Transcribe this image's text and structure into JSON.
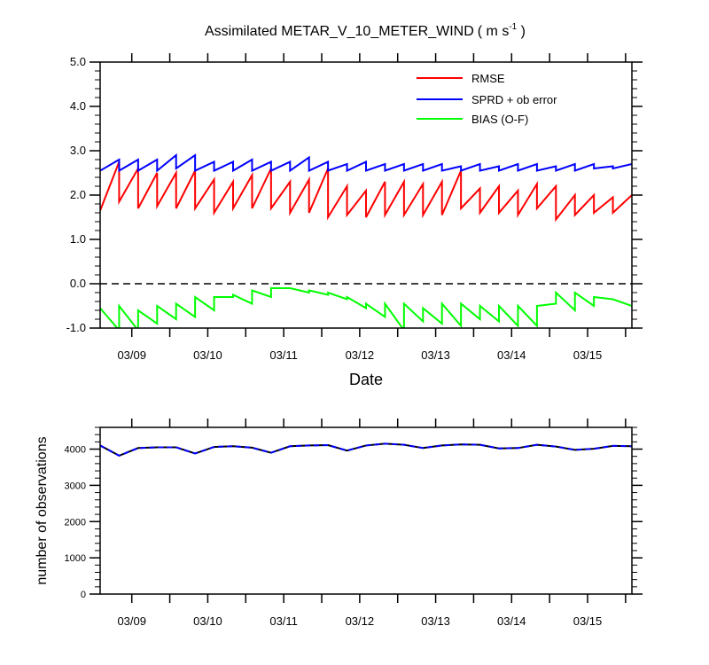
{
  "chart_data": [
    {
      "type": "line",
      "title": "Assimilated METAR_V_10_METER_WIND",
      "title_units": "( m s",
      "title_units_exponent": "-1",
      "title_units_close": " )",
      "xlabel": "Date",
      "ylabel": "",
      "x_tick_labels": [
        "03/09",
        "03/10",
        "03/11",
        "03/12",
        "03/13",
        "03/14",
        "03/15"
      ],
      "y_tick_labels": [
        "5.0",
        "4.0",
        "3.0",
        "2.0",
        "1.0",
        "0.0",
        "-1.0"
      ],
      "ylim": [
        -1.0,
        5.0
      ],
      "xlim": [
        "03/08 14:00",
        "03/15 14:00"
      ],
      "x_unit": "days from 03/08 00:00",
      "grid": false,
      "legend_placement": "top-right",
      "reference_line": {
        "y": 0.0,
        "style": "dashed"
      },
      "series": [
        {
          "name": "RMSE",
          "color": "#ff0000",
          "x": [
            0.5833,
            0.8333,
            0.8333,
            1.0833,
            1.0833,
            1.3333,
            1.3333,
            1.5833,
            1.5833,
            1.8333,
            1.8333,
            2.0833,
            2.0833,
            2.3333,
            2.3333,
            2.5833,
            2.5833,
            2.8333,
            2.8333,
            3.0833,
            3.0833,
            3.3333,
            3.3333,
            3.5833,
            3.5833,
            3.8333,
            3.8333,
            4.0833,
            4.0833,
            4.3333,
            4.3333,
            4.5833,
            4.5833,
            4.8333,
            4.8333,
            5.0833,
            5.0833,
            5.3333,
            5.3333,
            5.5833,
            5.5833,
            5.8333,
            5.8333,
            6.0833,
            6.0833,
            6.3333,
            6.3333,
            6.5833,
            6.5833,
            6.8333,
            6.8333,
            7.0833,
            7.0833,
            7.3333,
            7.3333,
            7.5833
          ],
          "values": [
            1.65,
            2.75,
            1.85,
            2.6,
            1.7,
            2.5,
            1.75,
            2.5,
            1.7,
            2.55,
            1.7,
            2.35,
            1.6,
            2.3,
            1.7,
            2.45,
            1.7,
            2.6,
            1.7,
            2.3,
            1.6,
            2.35,
            1.6,
            2.6,
            1.5,
            2.2,
            1.55,
            2.1,
            1.5,
            2.3,
            1.55,
            2.3,
            1.55,
            2.25,
            1.55,
            2.3,
            1.55,
            2.55,
            1.7,
            2.15,
            1.6,
            2.2,
            1.6,
            2.1,
            1.55,
            2.25,
            1.7,
            2.2,
            1.45,
            2.0,
            1.55,
            2.0,
            1.6,
            1.95,
            1.6,
            2.0
          ]
        },
        {
          "name": "SPRD + ob error",
          "color": "#0000ff",
          "x": [
            0.5833,
            0.8333,
            0.8333,
            1.0833,
            1.0833,
            1.3333,
            1.3333,
            1.5833,
            1.5833,
            1.8333,
            1.8333,
            2.0833,
            2.0833,
            2.3333,
            2.3333,
            2.5833,
            2.5833,
            2.8333,
            2.8333,
            3.0833,
            3.0833,
            3.3333,
            3.3333,
            3.5833,
            3.5833,
            3.8333,
            3.8333,
            4.0833,
            4.0833,
            4.3333,
            4.3333,
            4.5833,
            4.5833,
            4.8333,
            4.8333,
            5.0833,
            5.0833,
            5.3333,
            5.3333,
            5.5833,
            5.5833,
            5.8333,
            5.8333,
            6.0833,
            6.0833,
            6.3333,
            6.3333,
            6.5833,
            6.5833,
            6.8333,
            6.8333,
            7.0833,
            7.0833,
            7.3333,
            7.3333,
            7.5833
          ],
          "values": [
            2.55,
            2.8,
            2.55,
            2.8,
            2.55,
            2.8,
            2.55,
            2.9,
            2.6,
            2.9,
            2.55,
            2.75,
            2.55,
            2.75,
            2.55,
            2.8,
            2.55,
            2.75,
            2.55,
            2.75,
            2.55,
            2.85,
            2.55,
            2.75,
            2.55,
            2.7,
            2.55,
            2.75,
            2.55,
            2.7,
            2.55,
            2.7,
            2.55,
            2.7,
            2.55,
            2.7,
            2.55,
            2.65,
            2.55,
            2.7,
            2.55,
            2.65,
            2.55,
            2.7,
            2.55,
            2.7,
            2.55,
            2.65,
            2.55,
            2.7,
            2.55,
            2.7,
            2.6,
            2.65,
            2.6,
            2.7
          ]
        },
        {
          "name": "BIAS (O-F)",
          "color": "#00ff00",
          "x": [
            0.5833,
            0.8333,
            0.8333,
            1.0833,
            1.0833,
            1.3333,
            1.3333,
            1.5833,
            1.5833,
            1.8333,
            1.8333,
            2.0833,
            2.0833,
            2.3333,
            2.3333,
            2.5833,
            2.5833,
            2.8333,
            2.8333,
            3.0833,
            3.0833,
            3.3333,
            3.3333,
            3.5833,
            3.5833,
            3.8333,
            3.8333,
            4.0833,
            4.0833,
            4.3333,
            4.3333,
            4.5833,
            4.5833,
            4.8333,
            4.8333,
            5.0833,
            5.0833,
            5.3333,
            5.3333,
            5.5833,
            5.5833,
            5.8333,
            5.8333,
            6.0833,
            6.0833,
            6.3333,
            6.3333,
            6.5833,
            6.5833,
            6.8333,
            6.8333,
            7.0833,
            7.0833,
            7.3333,
            7.3333,
            7.5833
          ],
          "values": [
            -0.55,
            -1.05,
            -0.5,
            -1.05,
            -0.6,
            -0.9,
            -0.5,
            -0.8,
            -0.45,
            -0.75,
            -0.3,
            -0.6,
            -0.3,
            -0.3,
            -0.25,
            -0.45,
            -0.15,
            -0.3,
            -0.1,
            -0.1,
            -0.1,
            -0.2,
            -0.15,
            -0.25,
            -0.2,
            -0.35,
            -0.3,
            -0.55,
            -0.45,
            -0.75,
            -0.45,
            -1.05,
            -0.45,
            -0.85,
            -0.55,
            -0.9,
            -0.45,
            -0.95,
            -0.45,
            -0.8,
            -0.5,
            -0.85,
            -0.5,
            -0.95,
            -0.5,
            -0.95,
            -0.5,
            -0.45,
            -0.2,
            -0.6,
            -0.2,
            -0.5,
            -0.3,
            -0.35,
            -0.35,
            -0.5
          ]
        }
      ]
    },
    {
      "type": "line",
      "title": "",
      "xlabel": "",
      "ylabel": "number of observations",
      "x_tick_labels": [
        "03/09",
        "03/10",
        "03/11",
        "03/12",
        "03/13",
        "03/14",
        "03/15"
      ],
      "y_tick_labels": [
        "4000",
        "3000",
        "2000",
        "1000",
        "0"
      ],
      "ylim": [
        0,
        4600
      ],
      "xlim": [
        "03/08 14:00",
        "03/15 14:00"
      ],
      "x_unit": "days from 03/08 00:00",
      "grid": false,
      "series": [
        {
          "name": "",
          "color": "#000000",
          "style": "solid",
          "x": [
            0.5833,
            0.8333,
            1.0833,
            1.3333,
            1.5833,
            1.8333,
            2.0833,
            2.3333,
            2.5833,
            2.8333,
            3.0833,
            3.3333,
            3.5833,
            3.8333,
            4.0833,
            4.3333,
            4.5833,
            4.8333,
            5.0833,
            5.3333,
            5.5833,
            5.8333,
            6.0833,
            6.3333,
            6.5833,
            6.8333,
            7.0833,
            7.3333,
            7.5833
          ],
          "values": [
            4100,
            3820,
            4030,
            4050,
            4050,
            3880,
            4060,
            4080,
            4040,
            3900,
            4080,
            4100,
            4110,
            3960,
            4100,
            4150,
            4120,
            4030,
            4100,
            4130,
            4120,
            4020,
            4030,
            4120,
            4070,
            3980,
            4010,
            4090,
            4080
          ]
        },
        {
          "name": "",
          "color": "#0000ff",
          "style": "dashed",
          "x": [
            0.5833,
            0.8333,
            1.0833,
            1.3333,
            1.5833,
            1.8333,
            2.0833,
            2.3333,
            2.5833,
            2.8333,
            3.0833,
            3.3333,
            3.5833,
            3.8333,
            4.0833,
            4.3333,
            4.5833,
            4.8333,
            5.0833,
            5.3333,
            5.5833,
            5.8333,
            6.0833,
            6.3333,
            6.5833,
            6.8333,
            7.0833,
            7.3333,
            7.5833
          ],
          "values": [
            4100,
            3820,
            4030,
            4050,
            4050,
            3880,
            4060,
            4080,
            4040,
            3900,
            4080,
            4100,
            4110,
            3960,
            4100,
            4150,
            4120,
            4030,
            4100,
            4130,
            4120,
            4020,
            4030,
            4120,
            4070,
            3980,
            4010,
            4090,
            4080
          ]
        }
      ]
    }
  ]
}
